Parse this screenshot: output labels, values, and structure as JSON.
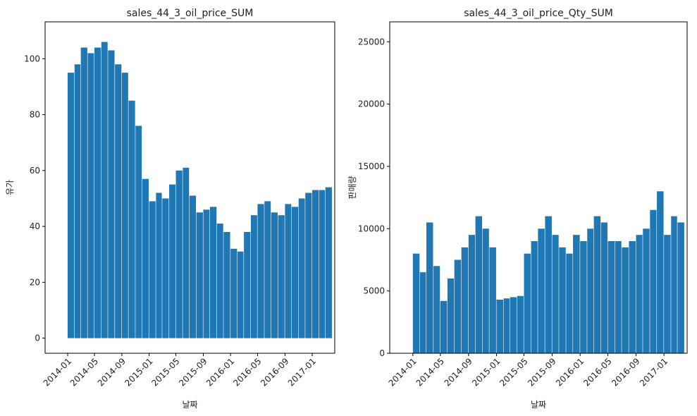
{
  "chart_data": [
    {
      "type": "bar",
      "title": "sales_44_3_oil_price_SUM",
      "xlabel": "날짜",
      "ylabel": "유가",
      "color": "#1f77b4",
      "xlim": [
        "2013-09-22",
        "2017-04-12"
      ],
      "ylim": [
        -5.4,
        113.2
      ],
      "yticks": [
        0,
        20,
        40,
        60,
        80,
        100
      ],
      "xticks": [
        "2014-01",
        "2014-05",
        "2014-09",
        "2015-01",
        "2015-05",
        "2015-09",
        "2016-01",
        "2016-05",
        "2016-09",
        "2017-01"
      ],
      "grid": false,
      "legend": "none",
      "x": [
        "2014-01-01",
        "2014-02-01",
        "2014-03-01",
        "2014-04-01",
        "2014-05-01",
        "2014-06-01",
        "2014-07-01",
        "2014-08-01",
        "2014-09-01",
        "2014-10-01",
        "2014-11-01",
        "2014-12-01",
        "2015-01-01",
        "2015-02-01",
        "2015-03-01",
        "2015-04-01",
        "2015-05-01",
        "2015-06-01",
        "2015-07-01",
        "2015-08-01",
        "2015-09-01",
        "2015-10-01",
        "2015-11-01",
        "2015-12-01",
        "2016-01-01",
        "2016-02-01",
        "2016-03-01",
        "2016-04-01",
        "2016-05-01",
        "2016-06-01",
        "2016-07-01",
        "2016-08-01",
        "2016-09-01",
        "2016-10-01",
        "2016-11-01",
        "2016-12-01",
        "2017-01-01",
        "2017-02-01",
        "2017-03-01"
      ],
      "values": [
        95,
        98,
        104,
        102,
        104,
        106,
        103,
        98,
        95,
        85,
        76,
        57,
        49,
        52,
        50,
        55,
        60,
        61,
        51,
        45,
        46,
        47,
        41,
        38,
        32,
        31,
        38,
        44,
        48,
        49,
        45,
        44,
        48,
        47,
        50,
        52,
        53,
        53,
        54
      ]
    },
    {
      "type": "bar",
      "title": "sales_44_3_oil_price_Qty_SUM",
      "xlabel": "날짜",
      "ylabel": "판매량",
      "color": "#1f77b4",
      "xlim": [
        "2013-09-22",
        "2017-04-12"
      ],
      "ylim": [
        0,
        26600
      ],
      "yticks": [
        0,
        5000,
        10000,
        15000,
        20000,
        25000
      ],
      "xticks": [
        "2014-01",
        "2014-05",
        "2014-09",
        "2015-01",
        "2015-05",
        "2015-09",
        "2016-01",
        "2016-05",
        "2016-09",
        "2017-01"
      ],
      "grid": false,
      "legend": "none",
      "x": [
        "2014-01-01",
        "2014-02-01",
        "2014-03-01",
        "2014-04-01",
        "2014-05-01",
        "2014-06-01",
        "2014-07-01",
        "2014-08-01",
        "2014-09-01",
        "2014-10-01",
        "2014-11-01",
        "2014-12-01",
        "2015-01-01",
        "2015-02-01",
        "2015-03-01",
        "2015-04-01",
        "2015-05-01",
        "2015-06-01",
        "2015-07-01",
        "2015-08-01",
        "2015-09-01",
        "2015-10-01",
        "2015-11-01",
        "2015-12-01",
        "2016-01-01",
        "2016-02-01",
        "2016-03-01",
        "2016-04-01",
        "2016-05-01",
        "2016-06-01",
        "2016-07-01",
        "2016-08-01",
        "2016-09-01",
        "2016-10-01",
        "2016-11-01",
        "2016-12-01",
        "2017-01-01",
        "2017-02-01",
        "2017-03-01"
      ],
      "values": [
        8000,
        6500,
        10500,
        7000,
        4200,
        6000,
        7500,
        8500,
        9500,
        11000,
        10000,
        8500,
        4300,
        4400,
        4500,
        4600,
        8000,
        9000,
        10000,
        11000,
        9500,
        8500,
        8000,
        9500,
        9000,
        10000,
        11000,
        10500,
        9000,
        9000,
        8500,
        9000,
        9500,
        10000,
        11500,
        13000,
        9500,
        11000,
        10500
      ]
    }
  ]
}
